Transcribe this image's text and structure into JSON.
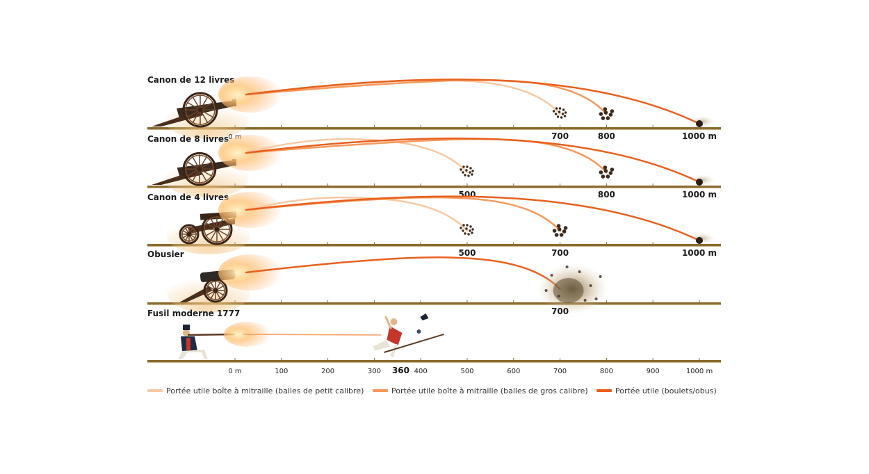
{
  "colors": {
    "small_shot": "#f8c9a3",
    "large_shot": "#f49a5c",
    "shot": "#e8601e",
    "ground": "#8b6b2e",
    "ground_light": "#c9b58a"
  },
  "rows": [
    {
      "label": "Canon de 12 livres",
      "weapon": "cannon-large",
      "zero_label": "0 m",
      "trajectories": [
        {
          "type": "small",
          "end": 700
        },
        {
          "type": "large",
          "end": 800
        },
        {
          "type": "shot",
          "end": 1000
        }
      ],
      "markers": [
        {
          "at": 700,
          "label": "700",
          "icon": "small-shot-cluster"
        },
        {
          "at": 800,
          "label": "800",
          "icon": "large-shot-cluster"
        },
        {
          "at": 1000,
          "label": "1000 m",
          "icon": "cannonball"
        }
      ]
    },
    {
      "label": "Canon de 8 livres",
      "weapon": "cannon-medium",
      "trajectories": [
        {
          "type": "small",
          "end": 500
        },
        {
          "type": "large",
          "end": 800
        },
        {
          "type": "shot",
          "end": 1000
        }
      ],
      "markers": [
        {
          "at": 500,
          "label": "500",
          "icon": "small-shot-cluster"
        },
        {
          "at": 800,
          "label": "800",
          "icon": "large-shot-cluster"
        },
        {
          "at": 1000,
          "label": "1000 m",
          "icon": "cannonball"
        }
      ]
    },
    {
      "label": "Canon de 4 livres",
      "weapon": "cannon-small",
      "trajectories": [
        {
          "type": "small",
          "end": 500
        },
        {
          "type": "large",
          "end": 700
        },
        {
          "type": "shot",
          "end": 1000
        }
      ],
      "markers": [
        {
          "at": 500,
          "label": "500",
          "icon": "small-shot-cluster"
        },
        {
          "at": 700,
          "label": "700",
          "icon": "large-shot-cluster"
        },
        {
          "at": 1000,
          "label": "1000 m",
          "icon": "cannonball"
        }
      ]
    },
    {
      "label": "Obusier",
      "weapon": "howitzer",
      "trajectories": [
        {
          "type": "shot",
          "end": 700
        }
      ],
      "markers": [
        {
          "at": 700,
          "label": "700",
          "icon": "explosion"
        }
      ]
    },
    {
      "label": "Fusil moderne 1777",
      "weapon": "musket",
      "range": 360,
      "range_label": "360",
      "target_icon": "falling-soldier"
    }
  ],
  "scale": {
    "ticks": [
      {
        "value": 0,
        "label": "0 m"
      },
      {
        "value": 100,
        "label": "100"
      },
      {
        "value": 200,
        "label": "200"
      },
      {
        "value": 300,
        "label": "300"
      },
      {
        "value": 400,
        "label": "400"
      },
      {
        "value": 500,
        "label": "500"
      },
      {
        "value": 600,
        "label": "600"
      },
      {
        "value": 700,
        "label": "700"
      },
      {
        "value": 800,
        "label": "800"
      },
      {
        "value": 900,
        "label": "900"
      },
      {
        "value": 1000,
        "label": "1000 m"
      }
    ]
  },
  "legend": [
    {
      "key": "small",
      "label": "Portée utile boîte à mitraille (balles de petit calibre)"
    },
    {
      "key": "large",
      "label": "Portée utile boîte à mitraille (balles de gros calibre)"
    },
    {
      "key": "shot",
      "label": "Portée utile (boulets/obus)"
    }
  ]
}
